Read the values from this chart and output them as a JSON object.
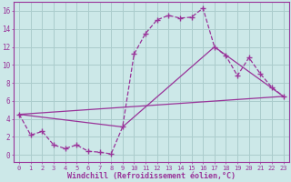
{
  "xlabel": "Windchill (Refroidissement éolien,°C)",
  "background_color": "#cce8e8",
  "line_color": "#993399",
  "grid_color": "#aacccc",
  "xlim": [
    -0.5,
    23.5
  ],
  "ylim": [
    -0.8,
    17.0
  ],
  "xticks": [
    0,
    1,
    2,
    3,
    4,
    5,
    6,
    7,
    8,
    9,
    10,
    11,
    12,
    13,
    14,
    15,
    16,
    17,
    18,
    19,
    20,
    21,
    22,
    23
  ],
  "yticks": [
    0,
    2,
    4,
    6,
    8,
    10,
    12,
    14,
    16
  ],
  "line1_x": [
    0,
    1,
    2,
    3,
    4,
    5,
    6,
    7,
    8,
    9,
    10,
    11,
    12,
    13,
    14,
    15,
    16,
    17,
    18,
    19,
    20,
    21,
    22,
    23
  ],
  "line1_y": [
    4.5,
    2.2,
    2.6,
    1.1,
    0.7,
    1.1,
    0.4,
    0.3,
    0.1,
    3.1,
    11.2,
    13.5,
    15.0,
    15.5,
    15.2,
    15.3,
    16.3,
    12.0,
    11.0,
    8.8,
    10.8,
    9.0,
    7.5,
    6.5
  ],
  "line2_x": [
    0,
    23
  ],
  "line2_y": [
    4.5,
    6.5
  ],
  "line3_x": [
    0,
    9,
    17,
    23
  ],
  "line3_y": [
    4.5,
    3.1,
    12.0,
    6.5
  ],
  "marker": "+"
}
